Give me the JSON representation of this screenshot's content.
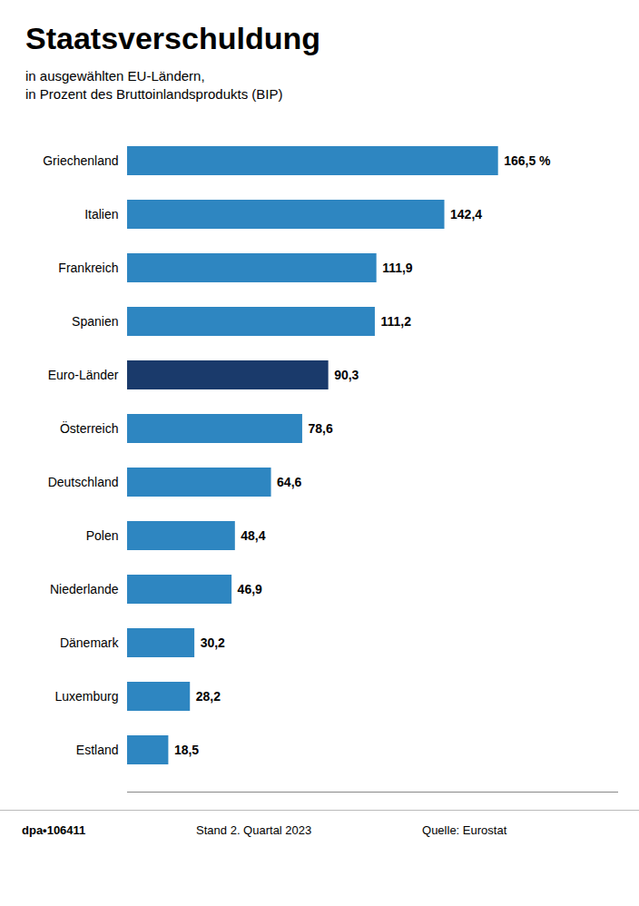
{
  "chart_data": {
    "type": "bar",
    "orientation": "horizontal",
    "title": "Staatsverschuldung",
    "subtitle": [
      "in ausgewählten EU-Ländern,",
      "in Prozent des Bruttoinlandsprodukts (BIP)"
    ],
    "categories": [
      "Griechenland",
      "Italien",
      "Frankreich",
      "Spanien",
      "Euro-Länder",
      "Österreich",
      "Deutschland",
      "Polen",
      "Niederlande",
      "Dänemark",
      "Luxemburg",
      "Estland"
    ],
    "values": [
      166.5,
      142.4,
      111.9,
      111.2,
      90.3,
      78.6,
      64.6,
      48.4,
      46.9,
      30.2,
      28.2,
      18.5
    ],
    "value_labels": [
      "166,5 %",
      "142,4",
      "111,9",
      "111,2",
      "90,3",
      "78,6",
      "64,6",
      "48,4",
      "46,9",
      "30,2",
      "28,2",
      "18,5"
    ],
    "colors": [
      "#2e86c1",
      "#2e86c1",
      "#2e86c1",
      "#2e86c1",
      "#1a3a6b",
      "#2e86c1",
      "#2e86c1",
      "#2e86c1",
      "#2e86c1",
      "#2e86c1",
      "#2e86c1",
      "#2e86c1"
    ],
    "xlim": [
      0,
      220
    ],
    "data_labels": true,
    "tick_labels": "y",
    "grid": false,
    "annotations": [
      "dpa•106411",
      "Stand 2. Quartal 2023",
      "Quelle: Eurostat"
    ]
  }
}
